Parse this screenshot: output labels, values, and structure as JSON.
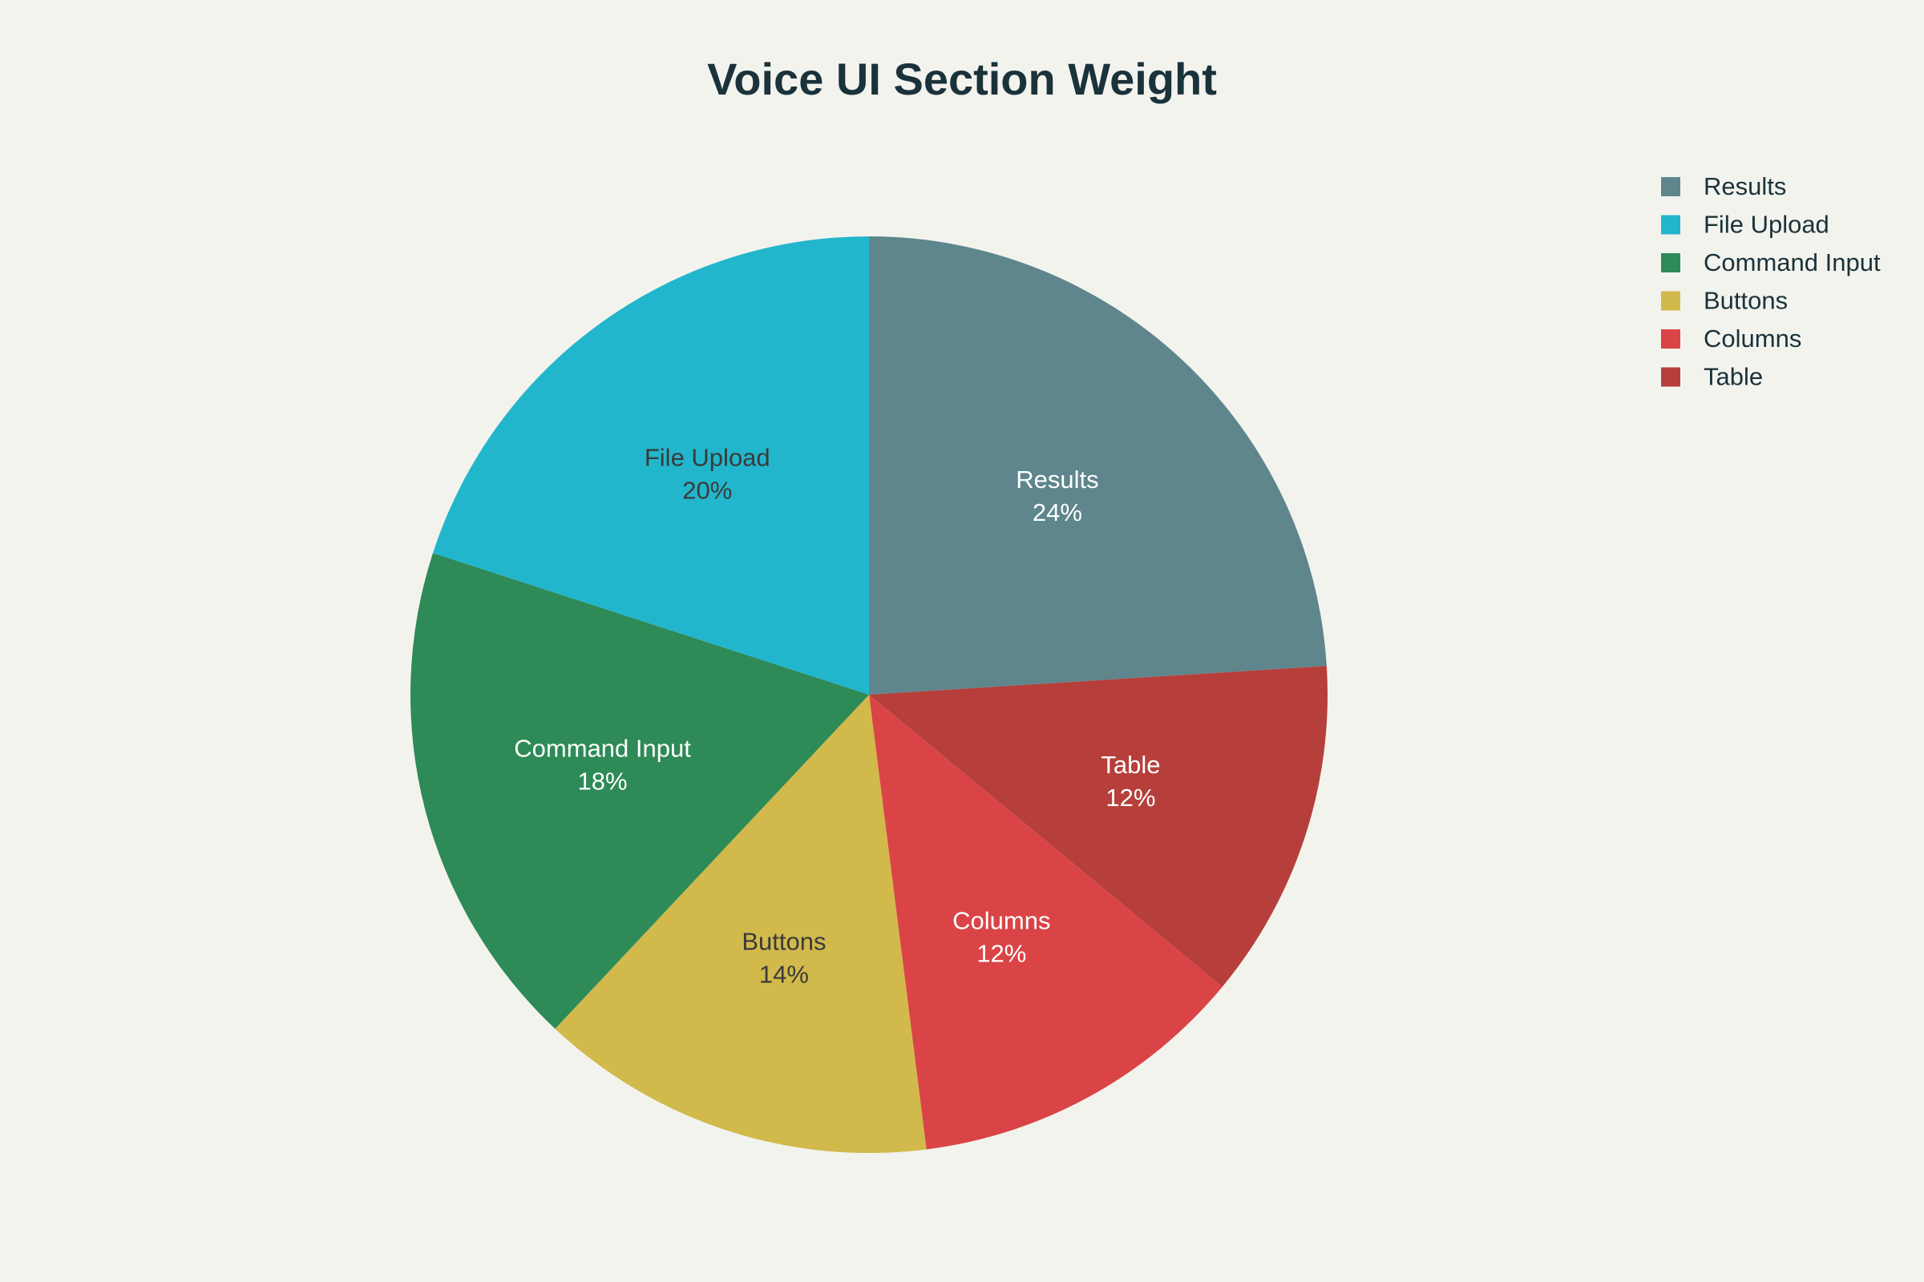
{
  "chart_data": {
    "type": "pie",
    "title": "Voice UI Section Weight",
    "slices": [
      {
        "label": "Results",
        "value": 24,
        "display": "24%",
        "color": "#5e868c",
        "text_color": "#ffffff"
      },
      {
        "label": "Table",
        "value": 12,
        "display": "12%",
        "color": "#b63f3b",
        "text_color": "#ffffff"
      },
      {
        "label": "Columns",
        "value": 12,
        "display": "12%",
        "color": "#da4446",
        "text_color": "#ffffff"
      },
      {
        "label": "Buttons",
        "value": 14,
        "display": "14%",
        "color": "#d1b94b",
        "text_color": "#3a3a3a"
      },
      {
        "label": "Command Input",
        "value": 18,
        "display": "18%",
        "color": "#2e8a57",
        "text_color": "#ffffff"
      },
      {
        "label": "File Upload",
        "value": 20,
        "display": "20%",
        "color": "#22b6cc",
        "text_color": "#3a3a3a"
      }
    ],
    "start_angle_deg": 0,
    "direction": "clockwise",
    "legend": {
      "position": "top-right",
      "order": [
        "Results",
        "File Upload",
        "Command Input",
        "Buttons",
        "Columns",
        "Table"
      ]
    }
  }
}
